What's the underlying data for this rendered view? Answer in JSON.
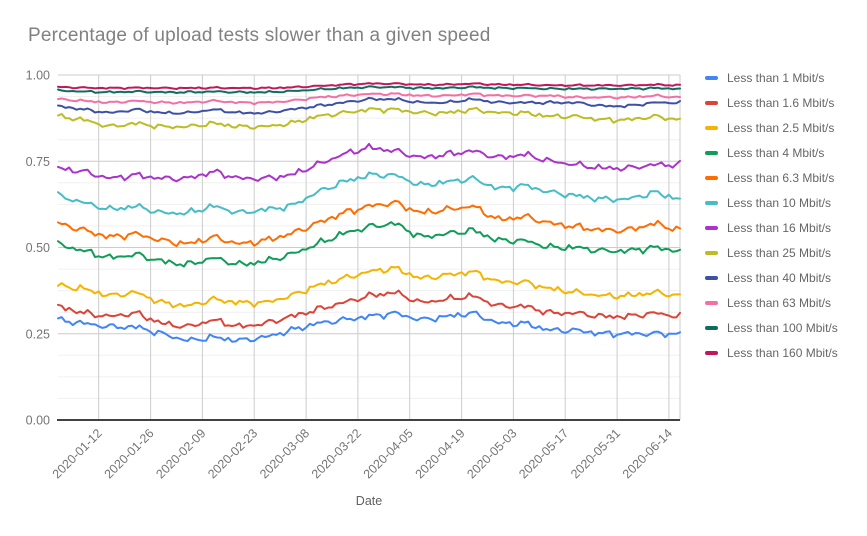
{
  "chart_data": {
    "type": "line",
    "title": "Percentage of upload tests slower than a given speed",
    "xlabel": "Date",
    "ylabel": "",
    "ylim": [
      0,
      1
    ],
    "grid": true,
    "legend_position": "right",
    "y_ticks": [
      0,
      0.25,
      0.5,
      0.75,
      1
    ],
    "y_tick_labels": [
      "0.00",
      "0.25",
      "0.50",
      "0.75",
      "1.00"
    ],
    "y_minor_step": 0.0625,
    "x_tick_labels": [
      "2020-01-12",
      "2020-01-26",
      "2020-02-09",
      "2020-02-23",
      "2020-03-08",
      "2020-03-22",
      "2020-04-05",
      "2020-04-19",
      "2020-05-03",
      "2020-05-17",
      "2020-05-31",
      "2020-06-14"
    ],
    "x_start_date": "2020-01-01",
    "x_end_date": "2020-06-17",
    "x_first_tick_day_index": 11,
    "x_tick_step_days": 14,
    "x_total_days": 168,
    "keyframe_interval_days": 7,
    "series": [
      {
        "name": "Less than 1 Mbit/s",
        "color": "#4285F4",
        "jitter": 0.013,
        "weekly_values": [
          0.29,
          0.28,
          0.27,
          0.27,
          0.25,
          0.23,
          0.24,
          0.23,
          0.24,
          0.26,
          0.28,
          0.29,
          0.3,
          0.31,
          0.29,
          0.3,
          0.31,
          0.28,
          0.28,
          0.26,
          0.26,
          0.25,
          0.25,
          0.25,
          0.25
        ]
      },
      {
        "name": "Less than 1.6 Mbit/s",
        "color": "#DB4437",
        "jitter": 0.013,
        "weekly_values": [
          0.33,
          0.31,
          0.3,
          0.31,
          0.28,
          0.27,
          0.29,
          0.27,
          0.28,
          0.3,
          0.32,
          0.34,
          0.36,
          0.37,
          0.34,
          0.35,
          0.36,
          0.33,
          0.33,
          0.31,
          0.31,
          0.3,
          0.3,
          0.31,
          0.3
        ]
      },
      {
        "name": "Less than 2.5 Mbit/s",
        "color": "#F4B400",
        "jitter": 0.013,
        "weekly_values": [
          0.39,
          0.38,
          0.36,
          0.37,
          0.34,
          0.33,
          0.35,
          0.34,
          0.34,
          0.36,
          0.39,
          0.41,
          0.43,
          0.44,
          0.41,
          0.42,
          0.43,
          0.4,
          0.4,
          0.38,
          0.37,
          0.36,
          0.36,
          0.37,
          0.36
        ]
      },
      {
        "name": "Less than 4 Mbit/s",
        "color": "#0F9D58",
        "jitter": 0.014,
        "weekly_values": [
          0.51,
          0.49,
          0.47,
          0.48,
          0.46,
          0.45,
          0.47,
          0.45,
          0.46,
          0.48,
          0.51,
          0.54,
          0.56,
          0.57,
          0.53,
          0.54,
          0.55,
          0.52,
          0.52,
          0.5,
          0.5,
          0.49,
          0.49,
          0.5,
          0.49
        ]
      },
      {
        "name": "Less than 6.3 Mbit/s",
        "color": "#FF6D00",
        "jitter": 0.014,
        "weekly_values": [
          0.57,
          0.55,
          0.53,
          0.54,
          0.52,
          0.51,
          0.53,
          0.51,
          0.52,
          0.54,
          0.57,
          0.6,
          0.62,
          0.63,
          0.6,
          0.61,
          0.62,
          0.58,
          0.59,
          0.57,
          0.56,
          0.55,
          0.55,
          0.57,
          0.55
        ]
      },
      {
        "name": "Less than 10 Mbit/s",
        "color": "#46BDC6",
        "jitter": 0.013,
        "weekly_values": [
          0.65,
          0.63,
          0.61,
          0.62,
          0.6,
          0.6,
          0.62,
          0.6,
          0.61,
          0.62,
          0.66,
          0.69,
          0.71,
          0.71,
          0.68,
          0.69,
          0.7,
          0.67,
          0.68,
          0.66,
          0.65,
          0.64,
          0.64,
          0.66,
          0.64
        ]
      },
      {
        "name": "Less than 16 Mbit/s",
        "color": "#AB33CC",
        "jitter": 0.013,
        "weekly_values": [
          0.73,
          0.72,
          0.7,
          0.71,
          0.7,
          0.7,
          0.72,
          0.7,
          0.7,
          0.71,
          0.74,
          0.77,
          0.79,
          0.78,
          0.76,
          0.77,
          0.78,
          0.76,
          0.77,
          0.75,
          0.74,
          0.73,
          0.73,
          0.74,
          0.74
        ]
      },
      {
        "name": "Less than 25 Mbit/s",
        "color": "#BCBD22",
        "jitter": 0.01,
        "weekly_values": [
          0.88,
          0.87,
          0.85,
          0.86,
          0.85,
          0.85,
          0.86,
          0.85,
          0.85,
          0.86,
          0.88,
          0.89,
          0.9,
          0.9,
          0.89,
          0.89,
          0.9,
          0.89,
          0.89,
          0.88,
          0.88,
          0.87,
          0.87,
          0.88,
          0.87
        ]
      },
      {
        "name": "Less than 40 Mbit/s",
        "color": "#3C50A8",
        "jitter": 0.006,
        "weekly_values": [
          0.91,
          0.9,
          0.89,
          0.9,
          0.89,
          0.89,
          0.9,
          0.89,
          0.89,
          0.9,
          0.91,
          0.92,
          0.93,
          0.93,
          0.92,
          0.92,
          0.93,
          0.92,
          0.92,
          0.92,
          0.92,
          0.91,
          0.91,
          0.92,
          0.92
        ]
      },
      {
        "name": "Less than 63 Mbit/s",
        "color": "#F470A4",
        "jitter": 0.005,
        "weekly_values": [
          0.93,
          0.925,
          0.92,
          0.925,
          0.92,
          0.92,
          0.925,
          0.92,
          0.92,
          0.925,
          0.935,
          0.94,
          0.945,
          0.945,
          0.94,
          0.94,
          0.945,
          0.94,
          0.94,
          0.94,
          0.935,
          0.935,
          0.935,
          0.94,
          0.935
        ]
      },
      {
        "name": "Less than 100 Mbit/s",
        "color": "#0D6E5D",
        "jitter": 0.004,
        "weekly_values": [
          0.955,
          0.952,
          0.95,
          0.952,
          0.95,
          0.95,
          0.952,
          0.95,
          0.95,
          0.953,
          0.958,
          0.962,
          0.965,
          0.965,
          0.962,
          0.962,
          0.965,
          0.962,
          0.962,
          0.96,
          0.96,
          0.96,
          0.96,
          0.962,
          0.96
        ]
      },
      {
        "name": "Less than 160 Mbit/s",
        "color": "#C2185B",
        "jitter": 0.0035,
        "weekly_values": [
          0.965,
          0.963,
          0.962,
          0.963,
          0.962,
          0.962,
          0.963,
          0.962,
          0.962,
          0.964,
          0.968,
          0.972,
          0.975,
          0.975,
          0.972,
          0.972,
          0.975,
          0.972,
          0.972,
          0.97,
          0.97,
          0.97,
          0.97,
          0.972,
          0.97
        ]
      }
    ],
    "style_colors": {
      "title_text": "#818181",
      "axis_text": "#757575",
      "axis_title_text": "#616161",
      "legend_text": "#666666",
      "major_grid": "#cccccc",
      "minor_grid": "#f0f0f0",
      "baseline": "#424242"
    }
  }
}
